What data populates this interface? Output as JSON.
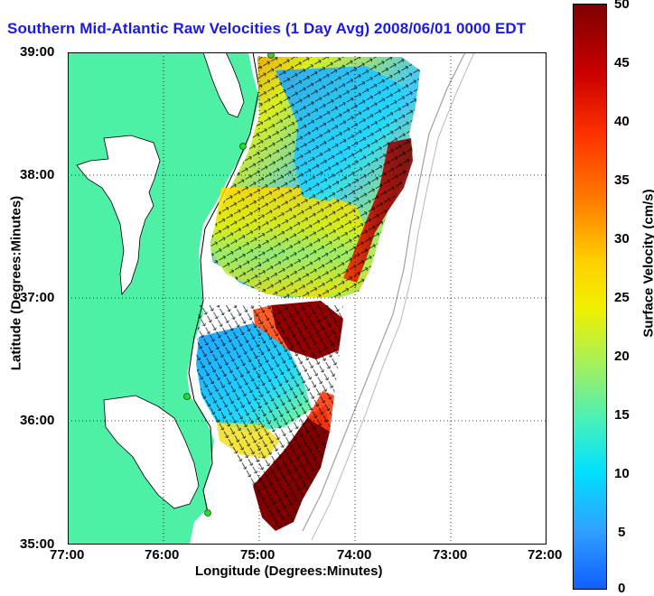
{
  "title": "Southern Mid-Atlantic Raw Velocities (1 Day Avg) 2008/06/01 0000 EDT",
  "axes": {
    "xlabel": "Longitude (Degrees:Minutes)",
    "ylabel": "Latitude (Degrees:Minutes)",
    "xticks": [
      "77:00",
      "76:00",
      "75:00",
      "74:00",
      "73:00",
      "72:00"
    ],
    "yticks": [
      "39:00",
      "38:00",
      "37:00",
      "36:00",
      "35:00"
    ]
  },
  "colorbar": {
    "label": "Surface Velocity (cm/s)",
    "ticks": [
      "50",
      "45",
      "40",
      "35",
      "30",
      "25",
      "20",
      "15",
      "10",
      "5",
      "0"
    ],
    "min": 0,
    "max": 50
  },
  "colors": {
    "land": "#4ef0a6",
    "title": "#1a1ae6",
    "grid": "#000000",
    "station": "#22dd22",
    "arrows": "#000000"
  },
  "stations_visible": 4
}
